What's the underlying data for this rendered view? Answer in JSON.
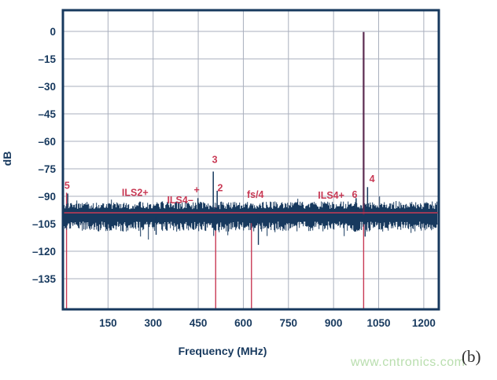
{
  "figure": {
    "ylabel": "dB",
    "xlabel": "Frequency (MHz)",
    "watermark": "www.cntronics.com",
    "panel_label": "(b)"
  },
  "colors": {
    "navy": "#17395E",
    "red": "#C93A55",
    "maroon": "#5B2B50",
    "grid": "#A9AFBD",
    "watermark_green": "#B9DEAE",
    "panel_label_gray": "#2E2E2E",
    "background": "#FFFFFF"
  },
  "chart_data": {
    "type": "line",
    "subtype": "fft-spectrum",
    "title": "",
    "xlabel": "Frequency (MHz)",
    "ylabel": "dB",
    "xlim": [
      0,
      1250
    ],
    "ylim": [
      -150,
      10
    ],
    "grid": true,
    "legend": false,
    "xticks": [
      150,
      300,
      450,
      600,
      750,
      900,
      1050,
      1200
    ],
    "yticks": [
      0,
      -15,
      -30,
      -45,
      -60,
      -75,
      -90,
      -105,
      -120,
      -135
    ],
    "yticklabels": [
      "0",
      "–15",
      "–30",
      "–45",
      "–60",
      "–75",
      "–90",
      "–105",
      "–120",
      "–135"
    ],
    "noise_floor": {
      "mean_db": -100,
      "upper_db": -93,
      "lower_db": -108
    },
    "average_line_db": -99,
    "fundamental": {
      "mhz": 1000,
      "db": -0.3
    },
    "peaks": [
      {
        "label": "5",
        "mhz": 16,
        "db": -88.5
      },
      {
        "label": "",
        "mhz": 386,
        "db": -93
      },
      {
        "label": "",
        "mhz": 449,
        "db": -91
      },
      {
        "label": "3",
        "mhz": 500,
        "db": -76.5
      },
      {
        "label": "2",
        "mhz": 513,
        "db": -87
      },
      {
        "label": "6",
        "mhz": 975,
        "db": -91
      },
      {
        "label": "4",
        "mhz": 1013,
        "db": -85
      }
    ],
    "marker_lines": [
      {
        "mhz": 12,
        "top_db": -88
      },
      {
        "mhz": 508,
        "top_db": -96
      },
      {
        "mhz": 627,
        "top_db": -97
      },
      {
        "mhz": 1000,
        "top_db": -96
      }
    ],
    "down_spikes": [
      {
        "mhz": 310,
        "db": -111
      },
      {
        "mhz": 650,
        "db": -116.5
      },
      {
        "mhz": 1005,
        "db": -112
      }
    ],
    "annotations": [
      {
        "text": "5",
        "mhz": 14,
        "db": -84
      },
      {
        "text": "ILS2+",
        "mhz": 240,
        "db": -88
      },
      {
        "text": "ILS4–",
        "mhz": 390,
        "db": -92
      },
      {
        "text": "+",
        "mhz": 445,
        "db": -86.5
      },
      {
        "text": "3",
        "mhz": 505,
        "db": -70
      },
      {
        "text": "2",
        "mhz": 523,
        "db": -85.3
      },
      {
        "text": "fs/4",
        "mhz": 640,
        "db": -89
      },
      {
        "text": "ILS4+",
        "mhz": 892,
        "db": -89.5
      },
      {
        "text": "6",
        "mhz": 970,
        "db": -89
      },
      {
        "text": "4",
        "mhz": 1028,
        "db": -80.5
      }
    ]
  }
}
